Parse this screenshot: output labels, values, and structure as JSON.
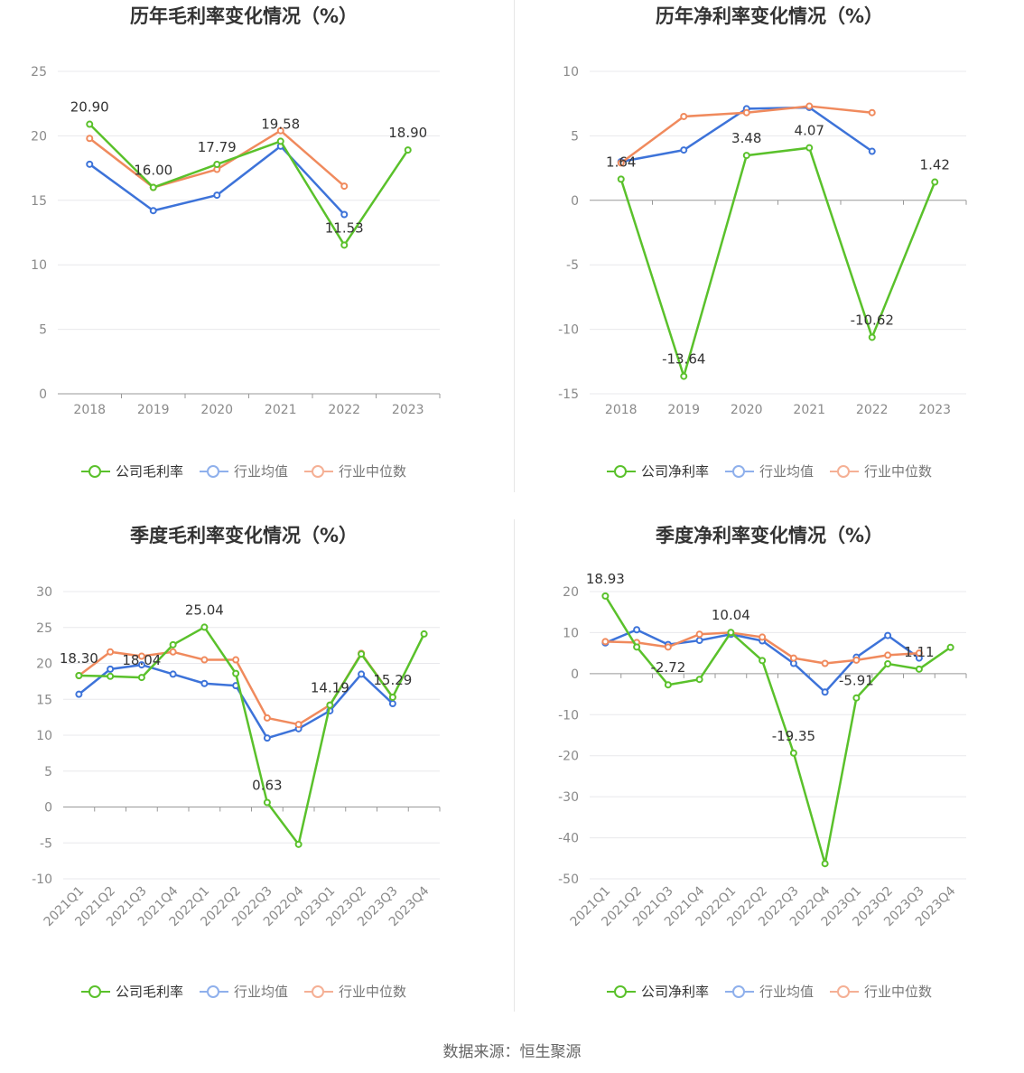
{
  "source": "数据来源：恒生聚源",
  "colors": {
    "company": "#5ac12b",
    "avg": "#3d73d9",
    "median": "#f08a5d",
    "grid": "#e8e8ec",
    "axis": "#999999"
  },
  "chart_data": [
    {
      "id": "annual-gross",
      "type": "line",
      "title": "历年毛利率变化情况（%）",
      "categories": [
        "2018",
        "2019",
        "2020",
        "2021",
        "2022",
        "2023"
      ],
      "ylim": [
        0,
        25
      ],
      "yticks": [
        0,
        5,
        10,
        15,
        20,
        25
      ],
      "series": [
        {
          "name": "公司毛利率",
          "color": "#5ac12b",
          "values": [
            20.9,
            16.0,
            17.79,
            19.58,
            11.53,
            18.9
          ],
          "labels": [
            "20.90",
            "16.00",
            "17.79",
            "19.58",
            "11.53",
            "18.90"
          ]
        },
        {
          "name": "行业均值",
          "color": "#3d73d9",
          "values": [
            17.8,
            14.2,
            15.4,
            19.2,
            13.9,
            null
          ]
        },
        {
          "name": "行业中位数",
          "color": "#f08a5d",
          "values": [
            19.8,
            16.0,
            17.4,
            20.4,
            16.1,
            null
          ]
        }
      ]
    },
    {
      "id": "annual-net",
      "type": "line",
      "title": "历年净利率变化情况（%）",
      "categories": [
        "2018",
        "2019",
        "2020",
        "2021",
        "2022",
        "2023"
      ],
      "ylim": [
        -15,
        10
      ],
      "yticks": [
        -15,
        -10,
        -5,
        0,
        5,
        10
      ],
      "series": [
        {
          "name": "公司净利率",
          "color": "#5ac12b",
          "values": [
            1.64,
            -13.64,
            3.48,
            4.07,
            -10.62,
            1.42
          ],
          "labels": [
            "1.64",
            "-13.64",
            "3.48",
            "4.07",
            "-10.62",
            "1.42"
          ]
        },
        {
          "name": "行业均值",
          "color": "#3d73d9",
          "values": [
            3.0,
            3.9,
            7.1,
            7.2,
            3.8,
            null
          ]
        },
        {
          "name": "行业中位数",
          "color": "#f08a5d",
          "values": [
            2.9,
            6.5,
            6.8,
            7.3,
            6.8,
            null
          ]
        }
      ]
    },
    {
      "id": "quarterly-gross",
      "type": "line",
      "title": "季度毛利率变化情况（%）",
      "categories": [
        "2021Q1",
        "2021Q2",
        "2021Q3",
        "2021Q4",
        "2022Q1",
        "2022Q2",
        "2022Q3",
        "2022Q4",
        "2023Q1",
        "2023Q2",
        "2023Q3",
        "2023Q4"
      ],
      "ylim": [
        -10,
        30
      ],
      "yticks": [
        -10,
        -5,
        0,
        5,
        10,
        15,
        20,
        25,
        30
      ],
      "series": [
        {
          "name": "公司毛利率",
          "color": "#5ac12b",
          "values": [
            18.3,
            18.2,
            18.04,
            22.6,
            25.04,
            18.6,
            0.63,
            -5.2,
            14.19,
            21.3,
            15.29,
            24.1
          ],
          "labels": [
            "18.30",
            "",
            "18.04",
            "",
            "25.04",
            "",
            "0.63",
            "",
            "14.19",
            "",
            "15.29",
            ""
          ]
        },
        {
          "name": "行业均值",
          "color": "#3d73d9",
          "values": [
            15.7,
            19.2,
            19.8,
            18.5,
            17.2,
            16.9,
            9.6,
            10.9,
            13.4,
            18.5,
            14.4,
            null
          ]
        },
        {
          "name": "行业中位数",
          "color": "#f08a5d",
          "values": [
            18.3,
            21.6,
            21.0,
            21.6,
            20.5,
            20.5,
            12.4,
            11.5,
            14.2,
            21.4,
            15.3,
            null
          ]
        }
      ]
    },
    {
      "id": "quarterly-net",
      "type": "line",
      "title": "季度净利率变化情况（%）",
      "categories": [
        "2021Q1",
        "2021Q2",
        "2021Q3",
        "2021Q4",
        "2022Q1",
        "2022Q2",
        "2022Q3",
        "2022Q4",
        "2023Q1",
        "2023Q2",
        "2023Q3",
        "2023Q4"
      ],
      "ylim": [
        -50,
        20
      ],
      "yticks": [
        -50,
        -40,
        -30,
        -20,
        -10,
        0,
        10,
        20
      ],
      "series": [
        {
          "name": "公司净利率",
          "color": "#5ac12b",
          "values": [
            18.93,
            6.5,
            -2.72,
            -1.4,
            10.04,
            3.2,
            -19.35,
            -46.3,
            -5.91,
            2.4,
            1.11,
            6.4
          ],
          "labels": [
            "18.93",
            "",
            "-2.72",
            "",
            "10.04",
            "",
            "-19.35",
            "",
            "-5.91",
            "",
            "1.11",
            ""
          ]
        },
        {
          "name": "行业均值",
          "color": "#3d73d9",
          "values": [
            7.5,
            10.7,
            7.1,
            8.1,
            9.6,
            8.0,
            2.5,
            -4.5,
            4.0,
            9.3,
            3.8,
            null
          ]
        },
        {
          "name": "行业中位数",
          "color": "#f08a5d",
          "values": [
            7.8,
            7.6,
            6.5,
            9.6,
            10.0,
            8.9,
            3.8,
            2.5,
            3.3,
            4.5,
            5.0,
            null
          ]
        }
      ]
    }
  ]
}
